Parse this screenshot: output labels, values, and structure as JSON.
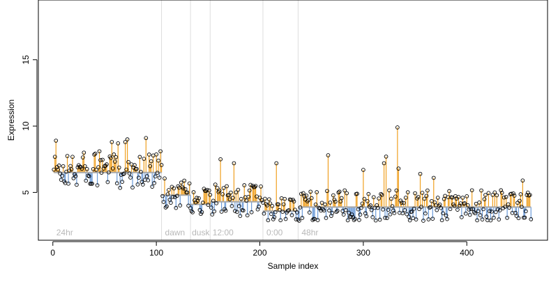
{
  "chart_data": {
    "type": "scatter",
    "xlabel": "Sample index",
    "ylabel": "Expression",
    "xlim": [
      -14,
      478
    ],
    "ylim": [
      1.4,
      19.5
    ],
    "x_ticks": [
      0,
      100,
      200,
      300,
      400
    ],
    "x_tick_labels": [
      "0",
      "100",
      "200",
      "300",
      "400"
    ],
    "y_ticks": [
      5,
      10,
      15
    ],
    "y_tick_labels": [
      "5",
      "10",
      "15"
    ],
    "dividers": [
      105,
      133,
      152,
      203,
      237
    ],
    "annotations": [
      {
        "text": "24hr",
        "x": 2
      },
      {
        "text": "dawn",
        "x": 107
      },
      {
        "text": "dusk",
        "x": 133
      },
      {
        "text": "12:00",
        "x": 153
      },
      {
        "text": "0:00",
        "x": 205
      },
      {
        "text": "48hr",
        "x": 239
      }
    ],
    "n_points": 462,
    "baseline_segments": [
      {
        "from": 1,
        "to": 105,
        "level": 6.5
      },
      {
        "from": 105,
        "to": 133,
        "level": 4.8
      },
      {
        "from": 133,
        "to": 152,
        "level": 4.1
      },
      {
        "from": 152,
        "to": 203,
        "level": 4.3
      },
      {
        "from": 203,
        "to": 237,
        "level": 3.6
      },
      {
        "from": 237,
        "to": 462,
        "level": 3.9
      }
    ],
    "highlighted_points": [
      {
        "x": 3,
        "y": 8.9
      },
      {
        "x": 30,
        "y": 8.0
      },
      {
        "x": 45,
        "y": 8.1
      },
      {
        "x": 57,
        "y": 8.8
      },
      {
        "x": 63,
        "y": 8.7
      },
      {
        "x": 70,
        "y": 8.8
      },
      {
        "x": 72,
        "y": 9.0
      },
      {
        "x": 90,
        "y": 9.1
      },
      {
        "x": 104,
        "y": 8.1
      },
      {
        "x": 162,
        "y": 7.5
      },
      {
        "x": 175,
        "y": 7.2
      },
      {
        "x": 216,
        "y": 7.2
      },
      {
        "x": 266,
        "y": 7.8
      },
      {
        "x": 300,
        "y": 6.7
      },
      {
        "x": 320,
        "y": 7.2
      },
      {
        "x": 322,
        "y": 7.7
      },
      {
        "x": 333,
        "y": 9.9
      },
      {
        "x": 334,
        "y": 6.8
      },
      {
        "x": 355,
        "y": 6.4
      },
      {
        "x": 368,
        "y": 6.1
      },
      {
        "x": 454,
        "y": 5.9
      }
    ],
    "colors": {
      "above_baseline": "#f0a020",
      "below_baseline": "#6a9ad8",
      "baseline": "#a8a8a8",
      "points": "#000000",
      "divider": "#dddddd",
      "annotation": "#b8b8b8"
    },
    "grid": false,
    "legend": "none"
  }
}
